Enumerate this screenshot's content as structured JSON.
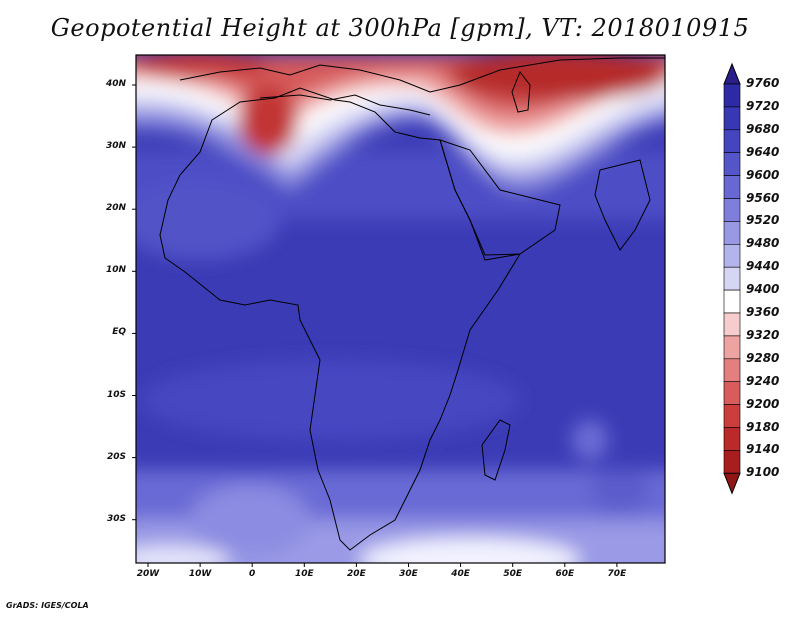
{
  "title": "Geopotential Height at 300hPa [gpm], VT: 2018010915",
  "footer": "GrADS: IGES/COLA",
  "map": {
    "lat_range": [
      -37,
      45
    ],
    "lon_range": [
      -22,
      80
    ],
    "lat_ticks": [
      "40N",
      "30N",
      "20N",
      "10N",
      "EQ",
      "10S",
      "20S",
      "30S"
    ],
    "lon_ticks": [
      "20W",
      "10W",
      "0",
      "10E",
      "20E",
      "30E",
      "40E",
      "50E",
      "60E",
      "70E"
    ],
    "field": "Geopotential Height at 300hPa",
    "units": "gpm",
    "valid_time": "2018010915"
  },
  "colorbar": {
    "levels": [
      "9760",
      "9720",
      "9680",
      "9640",
      "9600",
      "9560",
      "9520",
      "9480",
      "9440",
      "9400",
      "9360",
      "9320",
      "9280",
      "9240",
      "9200",
      "9180",
      "9140",
      "9100"
    ],
    "colors": [
      "#2a1f8a",
      "#2e2aa6",
      "#3838b4",
      "#4545c0",
      "#5555ca",
      "#6868d4",
      "#7e7edc",
      "#9898e4",
      "#b4b4ec",
      "#d6d6f4",
      "#ffffff",
      "#f6cccc",
      "#eea3a3",
      "#e47f7f",
      "#d95c5c",
      "#cc3e3e",
      "#bb2a2a",
      "#a81d1d",
      "#901616"
    ]
  }
}
